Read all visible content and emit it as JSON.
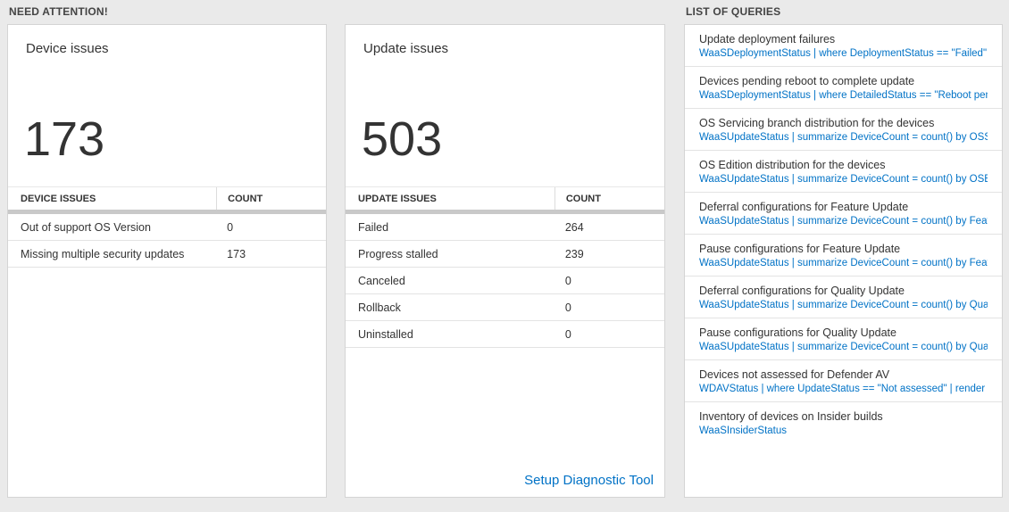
{
  "need_attention": {
    "header": "NEED ATTENTION!",
    "device_card": {
      "title": "Device issues",
      "count": "173",
      "table": {
        "headers": [
          "DEVICE ISSUES",
          "COUNT"
        ],
        "rows": [
          {
            "label": "Out of support OS Version",
            "count": "0"
          },
          {
            "label": "Missing multiple security updates",
            "count": "173"
          }
        ]
      }
    },
    "update_card": {
      "title": "Update issues",
      "count": "503",
      "table": {
        "headers": [
          "UPDATE ISSUES",
          "COUNT"
        ],
        "rows": [
          {
            "label": "Failed",
            "count": "264"
          },
          {
            "label": "Progress stalled",
            "count": "239"
          },
          {
            "label": "Canceled",
            "count": "0"
          },
          {
            "label": "Rollback",
            "count": "0"
          },
          {
            "label": "Uninstalled",
            "count": "0"
          }
        ]
      },
      "link_label": "Setup Diagnostic Tool"
    }
  },
  "queries": {
    "header": "LIST OF QUERIES",
    "items": [
      {
        "title": "Update deployment failures",
        "query": "WaaSDeploymentStatus | where DeploymentStatus == \"Failed\" |..."
      },
      {
        "title": "Devices pending reboot to complete update",
        "query": "WaaSDeploymentStatus | where DetailedStatus == \"Reboot pend..."
      },
      {
        "title": "OS Servicing branch distribution for the devices",
        "query": "WaaSUpdateStatus | summarize DeviceCount = count() by OSSer..."
      },
      {
        "title": "OS Edition distribution for the devices",
        "query": "WaaSUpdateStatus | summarize DeviceCount = count() by OSEdit..."
      },
      {
        "title": "Deferral configurations for Feature Update",
        "query": "WaaSUpdateStatus | summarize DeviceCount = count() by Featur..."
      },
      {
        "title": "Pause configurations for Feature Update",
        "query": "WaaSUpdateStatus | summarize DeviceCount = count() by Featur..."
      },
      {
        "title": "Deferral configurations for Quality Update",
        "query": "WaaSUpdateStatus | summarize DeviceCount = count() by Qualit..."
      },
      {
        "title": "Pause configurations for Quality Update",
        "query": "WaaSUpdateStatus | summarize DeviceCount = count() by Qualit..."
      },
      {
        "title": "Devices not assessed for Defender AV",
        "query": "WDAVStatus | where UpdateStatus == \"Not assessed\" | render ta..."
      },
      {
        "title": "Inventory of devices on Insider builds",
        "query": "WaaSInsiderStatus"
      }
    ],
    "colors": {
      "link_blue": "#0072c6"
    }
  }
}
